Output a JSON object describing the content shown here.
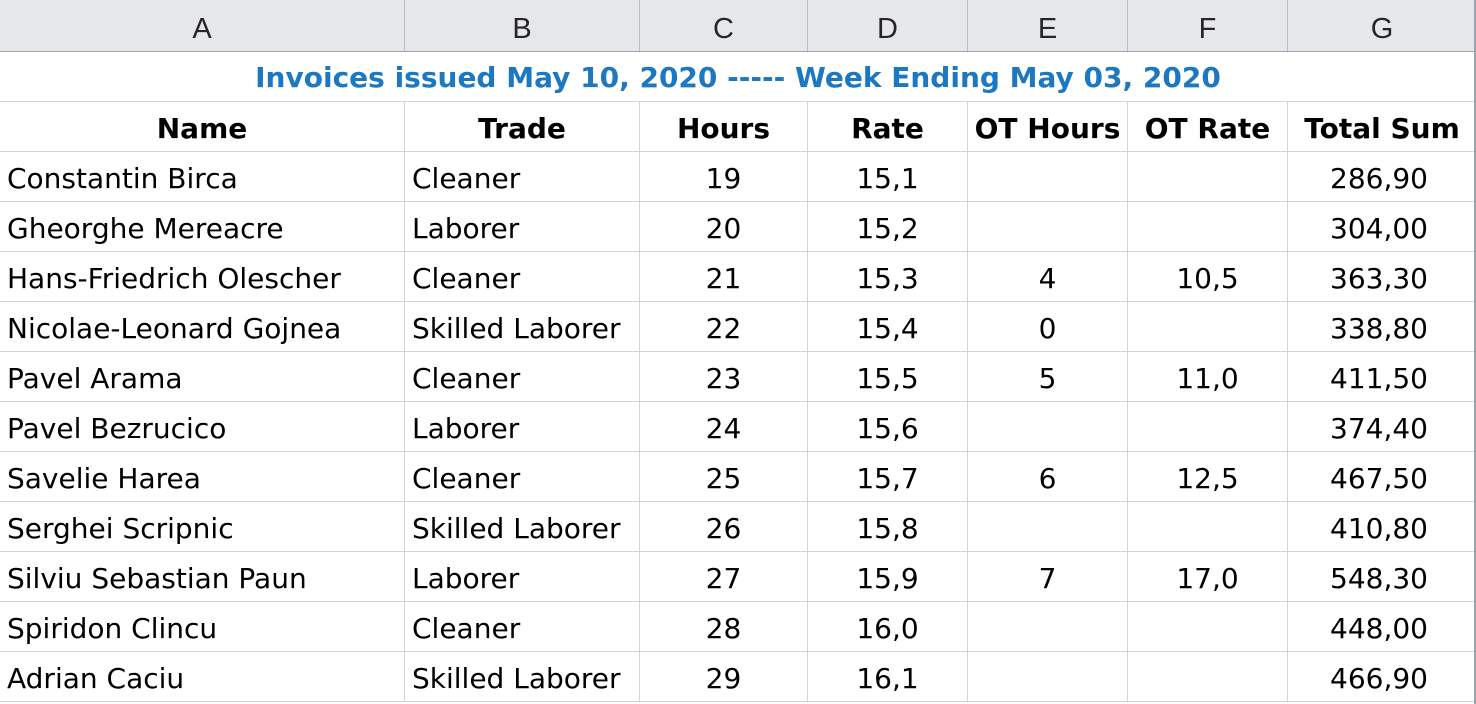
{
  "column_letters": [
    "A",
    "B",
    "C",
    "D",
    "E",
    "F",
    "G"
  ],
  "title": "Invoices issued May 10, 2020 ----- Week Ending May 03, 2020",
  "headers": [
    "Name",
    "Trade",
    "Hours",
    "Rate",
    "OT Hours",
    "OT Rate",
    "Total Sum"
  ],
  "rows": [
    [
      "Constantin Birca",
      "Cleaner",
      "19",
      "15,1",
      "",
      "",
      "286,90"
    ],
    [
      "Gheorghe Mereacre",
      "Laborer",
      "20",
      "15,2",
      "",
      "",
      "304,00"
    ],
    [
      "Hans-Friedrich Olescher",
      "Cleaner",
      "21",
      "15,3",
      "4",
      "10,5",
      "363,30"
    ],
    [
      "Nicolae-Leonard Gojnea",
      "Skilled Laborer",
      "22",
      "15,4",
      "0",
      "",
      "338,80"
    ],
    [
      "Pavel Arama",
      "Cleaner",
      "23",
      "15,5",
      "5",
      "11,0",
      "411,50"
    ],
    [
      "Pavel Bezrucico",
      "Laborer",
      "24",
      "15,6",
      "",
      "",
      "374,40"
    ],
    [
      "Savelie Harea",
      "Cleaner",
      "25",
      "15,7",
      "6",
      "12,5",
      "467,50"
    ],
    [
      "Serghei Scripnic",
      "Skilled Laborer",
      "26",
      "15,8",
      "",
      "",
      "410,80"
    ],
    [
      "Silviu Sebastian Paun",
      "Laborer",
      "27",
      "15,9",
      "7",
      "17,0",
      "548,30"
    ],
    [
      "Spiridon Clincu",
      "Cleaner",
      "28",
      "16,0",
      "",
      "",
      "448,00"
    ],
    [
      "Adrian Caciu",
      "Skilled Laborer",
      "29",
      "16,1",
      "",
      "",
      "466,90"
    ]
  ],
  "colors": {
    "title_text": "#1c78c0",
    "column_header_bg": "#e5e7eb",
    "gridline": "#d4d4d4"
  }
}
